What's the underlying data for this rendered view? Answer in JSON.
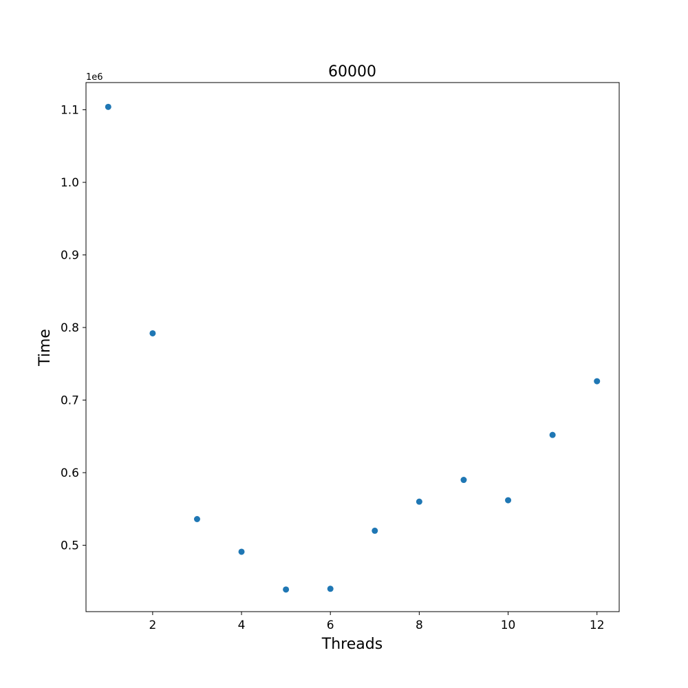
{
  "chart_data": {
    "type": "scatter",
    "title": "60000",
    "xlabel": "Threads",
    "ylabel": "Time",
    "y_offset_label": "1e6",
    "xlim": [
      0.5,
      12.5
    ],
    "ylim": [
      0.4085,
      1.1375
    ],
    "x_ticks": [
      2,
      4,
      6,
      8,
      10,
      12
    ],
    "x_tick_labels": [
      "2",
      "4",
      "6",
      "8",
      "10",
      "12"
    ],
    "y_ticks": [
      0.5,
      0.6,
      0.7,
      0.8,
      0.9,
      1.0,
      1.1
    ],
    "y_tick_labels": [
      "0.5",
      "0.6",
      "0.7",
      "0.8",
      "0.9",
      "1.0",
      "1.1"
    ],
    "grid": false,
    "color": "#1f77b4",
    "x": [
      1,
      2,
      3,
      4,
      5,
      6,
      7,
      8,
      9,
      10,
      11,
      12
    ],
    "y": [
      1.104,
      0.792,
      0.536,
      0.491,
      0.439,
      0.44,
      0.52,
      0.56,
      0.59,
      0.562,
      0.652,
      0.726
    ]
  }
}
